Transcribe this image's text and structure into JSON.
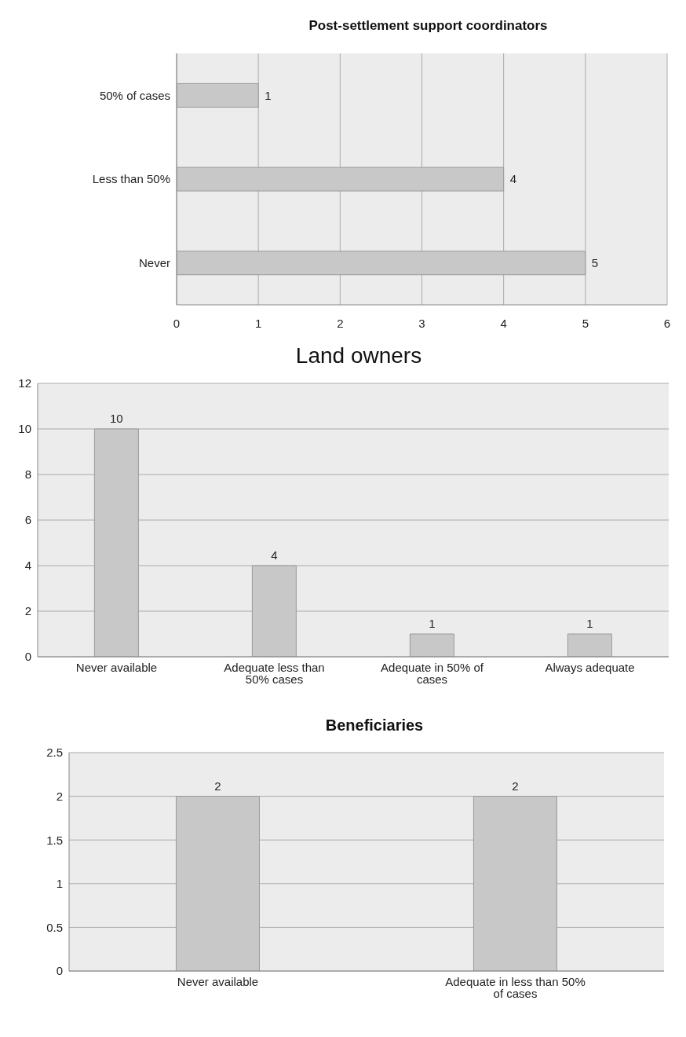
{
  "chart_data": [
    {
      "type": "bar",
      "title": "Post-settlement support coordinators",
      "orientation": "horizontal",
      "categories": [
        "50% of cases",
        "Less than 50%",
        "Never"
      ],
      "values": [
        1,
        4,
        5
      ],
      "color": "#c8c8c8",
      "xlim": [
        0,
        6
      ],
      "xticks": [
        0,
        1,
        2,
        3,
        4,
        5,
        6
      ],
      "grid": "x",
      "data_labels": true
    },
    {
      "type": "bar",
      "title": "Land owners",
      "categories": [
        "Never available",
        "Adequate less than 50% cases",
        "Adequate in 50% of cases",
        "Always adequate"
      ],
      "values": [
        10,
        4,
        1,
        1
      ],
      "color": "#c8c8c8",
      "ylim": [
        0,
        12
      ],
      "yticks": [
        0,
        2,
        4,
        6,
        8,
        10,
        12
      ],
      "grid": "y",
      "data_labels": true
    },
    {
      "type": "bar",
      "title": "Beneficiaries",
      "categories": [
        "Never available",
        "Adequate in less than 50% of cases"
      ],
      "values": [
        2,
        2
      ],
      "color": "#c8c8c8",
      "ylim": [
        0,
        2.5
      ],
      "yticks": [
        0,
        0.5,
        1,
        1.5,
        2,
        2.5
      ],
      "grid": "y",
      "data_labels": true
    }
  ]
}
